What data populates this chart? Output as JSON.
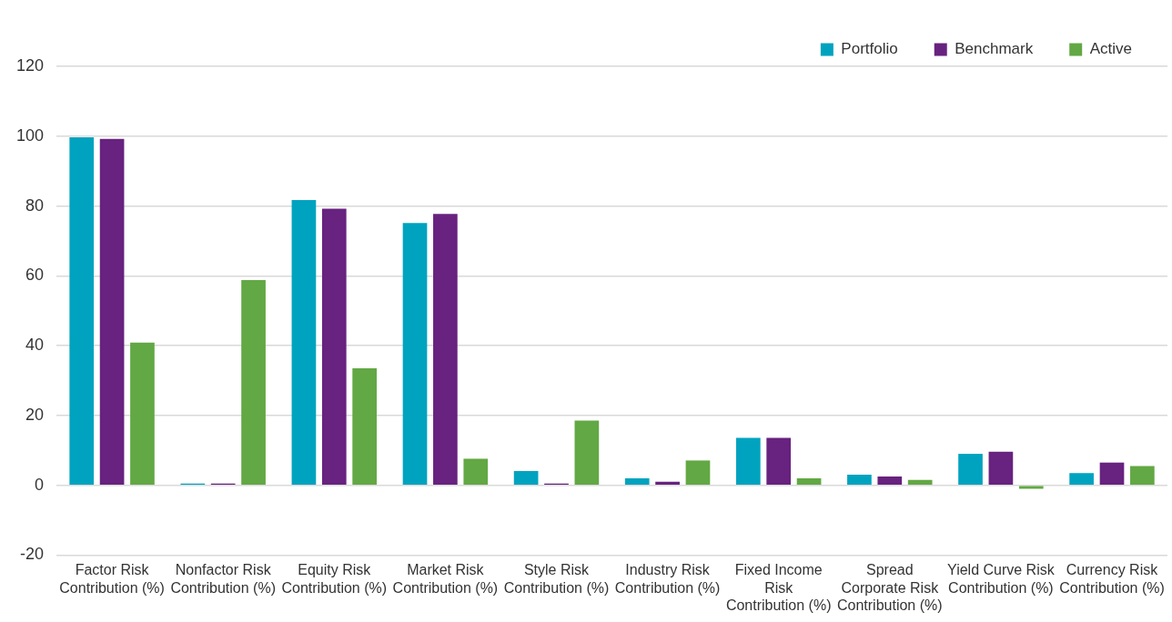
{
  "chart_data": {
    "type": "bar",
    "categories": [
      "Factor Risk Contribution (%)",
      "Nonfactor Risk Contribution (%)",
      "Equity Risk Contribution (%)",
      "Market Risk Contribution (%)",
      "Style Risk Contribution (%)",
      "Industry Risk Contribution (%)",
      "Fixed Income Risk Contribution (%)",
      "Spread Corporate Risk Contribution (%)",
      "Yield Curve Risk Contribution (%)",
      "Currency Risk Contribution (%)"
    ],
    "series": [
      {
        "name": "Portfolio",
        "color": "#00a3bf",
        "values": [
          99.7,
          0.5,
          81.7,
          75.1,
          4.1,
          2.0,
          13.6,
          3.0,
          9.0,
          3.5
        ]
      },
      {
        "name": "Benchmark",
        "color": "#68227f",
        "values": [
          99.2,
          0.5,
          79.2,
          77.7,
          0.5,
          1.0,
          13.6,
          2.5,
          9.6,
          6.5
        ]
      },
      {
        "name": "Active",
        "color": "#62a844",
        "values": [
          40.9,
          58.8,
          33.5,
          7.6,
          18.5,
          7.1,
          2.0,
          1.5,
          -1.0,
          5.5
        ]
      }
    ],
    "ylim": [
      -20,
      120
    ],
    "yticks": [
      -20,
      0,
      20,
      40,
      60,
      80,
      100,
      120
    ],
    "grid": "y",
    "legend": "top right"
  }
}
